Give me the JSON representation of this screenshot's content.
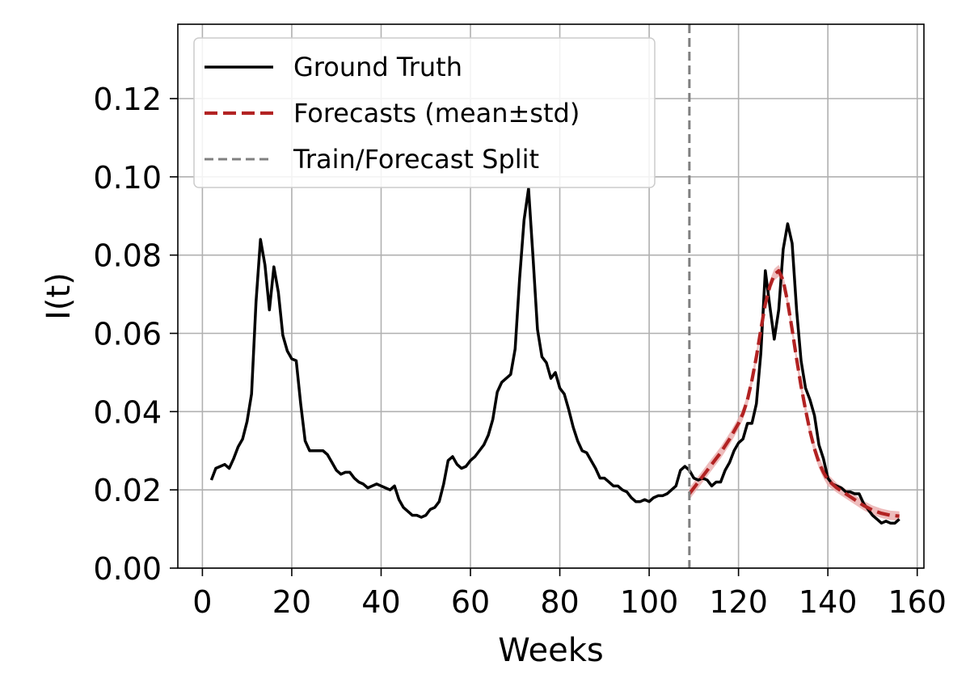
{
  "chart_data": {
    "type": "line",
    "title": "",
    "xlabel": "Weeks",
    "ylabel": "I(t)",
    "xlim": [
      -5.5,
      161.5
    ],
    "ylim": [
      0,
      0.139
    ],
    "xticks": [
      0,
      20,
      40,
      60,
      80,
      100,
      120,
      140,
      160
    ],
    "xtick_labels": [
      "0",
      "20",
      "40",
      "60",
      "80",
      "100",
      "120",
      "140",
      "160"
    ],
    "yticks": [
      0.0,
      0.02,
      0.04,
      0.06,
      0.08,
      0.1,
      0.12
    ],
    "ytick_labels": [
      "0.00",
      "0.02",
      "0.04",
      "0.06",
      "0.08",
      "0.10",
      "0.12"
    ],
    "grid": true,
    "legend_position": "top-left",
    "split_week": 109,
    "colors": {
      "ground_truth": "#000000",
      "forecast": "#b22222",
      "band": "#e8a6a6",
      "split": "#808080",
      "grid": "#b0b0b0"
    },
    "legend": [
      {
        "label": "Ground Truth",
        "style": "solid",
        "color": "#000000"
      },
      {
        "label": "Forecasts (mean±std)",
        "style": "dashed",
        "color": "#b22222"
      },
      {
        "label": "Train/Forecast Split",
        "style": "dashed",
        "color": "#808080"
      }
    ],
    "series": [
      {
        "name": "Ground Truth",
        "x": [
          2,
          3,
          4,
          5,
          6,
          7,
          8,
          9,
          10,
          11,
          12,
          13,
          14,
          15,
          16,
          17,
          18,
          19,
          20,
          21,
          22,
          23,
          24,
          25,
          26,
          27,
          28,
          29,
          30,
          31,
          32,
          33,
          34,
          35,
          36,
          37,
          38,
          39,
          40,
          41,
          42,
          43,
          44,
          45,
          46,
          47,
          48,
          49,
          50,
          51,
          52,
          53,
          54,
          55,
          56,
          57,
          58,
          59,
          60,
          61,
          62,
          63,
          64,
          65,
          66,
          67,
          68,
          69,
          70,
          71,
          72,
          73,
          74,
          75,
          76,
          77,
          78,
          79,
          80,
          81,
          82,
          83,
          84,
          85,
          86,
          87,
          88,
          89,
          90,
          91,
          92,
          93,
          94,
          95,
          96,
          97,
          98,
          99,
          100,
          101,
          102,
          103,
          104,
          105,
          106,
          107,
          108,
          109,
          110,
          111,
          112,
          113,
          114,
          115,
          116,
          117,
          118,
          119,
          120,
          121,
          122,
          123,
          124,
          125,
          126,
          127,
          128,
          129,
          130,
          131,
          132,
          133,
          134,
          135,
          136,
          137,
          138,
          139,
          140,
          141,
          142,
          143,
          144,
          145,
          146,
          147,
          148,
          149,
          150,
          151,
          152,
          153,
          154,
          155,
          156
        ],
        "y": [
          0.0225,
          0.0255,
          0.026,
          0.0265,
          0.0255,
          0.028,
          0.031,
          0.033,
          0.0375,
          0.0445,
          0.068,
          0.084,
          0.0775,
          0.066,
          0.077,
          0.0705,
          0.0595,
          0.0555,
          0.0535,
          0.053,
          0.042,
          0.0325,
          0.03,
          0.03,
          0.03,
          0.03,
          0.029,
          0.027,
          0.025,
          0.024,
          0.0245,
          0.0245,
          0.023,
          0.022,
          0.0215,
          0.0205,
          0.021,
          0.0215,
          0.021,
          0.0205,
          0.02,
          0.021,
          0.0175,
          0.0155,
          0.0145,
          0.0135,
          0.0135,
          0.013,
          0.0135,
          0.015,
          0.0155,
          0.017,
          0.0215,
          0.0275,
          0.0285,
          0.0265,
          0.0255,
          0.026,
          0.0275,
          0.0285,
          0.03,
          0.0315,
          0.034,
          0.038,
          0.045,
          0.0475,
          0.0485,
          0.0495,
          0.056,
          0.074,
          0.089,
          0.097,
          0.0795,
          0.061,
          0.054,
          0.0525,
          0.0485,
          0.05,
          0.046,
          0.0445,
          0.0405,
          0.036,
          0.0325,
          0.03,
          0.0295,
          0.0275,
          0.0255,
          0.023,
          0.023,
          0.022,
          0.021,
          0.021,
          0.02,
          0.0195,
          0.018,
          0.017,
          0.017,
          0.0175,
          0.017,
          0.018,
          0.0185,
          0.0185,
          0.019,
          0.02,
          0.021,
          0.025,
          0.026,
          0.025,
          0.023,
          0.0225,
          0.023,
          0.0225,
          0.021,
          0.022,
          0.022,
          0.025,
          0.027,
          0.03,
          0.032,
          0.033,
          0.037,
          0.037,
          0.042,
          0.055,
          0.076,
          0.067,
          0.0585,
          0.066,
          0.0815,
          0.088,
          0.083,
          0.066,
          0.053,
          0.046,
          0.043,
          0.039,
          0.0315,
          0.028,
          0.023,
          0.0215,
          0.021,
          0.0205,
          0.0195,
          0.0195,
          0.019,
          0.019,
          0.0165,
          0.015,
          0.0135,
          0.0125,
          0.0115,
          0.012,
          0.0115,
          0.0115,
          0.0125
        ]
      },
      {
        "name": "Forecasts (mean±std)",
        "x": [
          109,
          110,
          112,
          114,
          116,
          118,
          120,
          121,
          122,
          123,
          124,
          125,
          126,
          127,
          128,
          129,
          130,
          131,
          132,
          133,
          134,
          135,
          136,
          137,
          138,
          139,
          140,
          142,
          144,
          146,
          148,
          150,
          152,
          154,
          156
        ],
        "y": [
          0.019,
          0.0205,
          0.0235,
          0.0265,
          0.0295,
          0.033,
          0.037,
          0.0395,
          0.043,
          0.048,
          0.054,
          0.061,
          0.0675,
          0.072,
          0.075,
          0.076,
          0.0735,
          0.068,
          0.061,
          0.0535,
          0.0465,
          0.0405,
          0.035,
          0.0305,
          0.027,
          0.0245,
          0.0225,
          0.0205,
          0.019,
          0.0175,
          0.016,
          0.0148,
          0.014,
          0.0135,
          0.0133
        ],
        "std": [
          0.0015,
          0.0015,
          0.0015,
          0.0015,
          0.0015,
          0.0015,
          0.0015,
          0.0015,
          0.0015,
          0.0015,
          0.0015,
          0.0015,
          0.0015,
          0.0015,
          0.0015,
          0.0015,
          0.0015,
          0.0015,
          0.0015,
          0.0015,
          0.0015,
          0.0015,
          0.0015,
          0.0015,
          0.0015,
          0.0015,
          0.0015,
          0.0012,
          0.0012,
          0.0012,
          0.0012,
          0.0012,
          0.0012,
          0.0012,
          0.0012
        ]
      }
    ]
  }
}
